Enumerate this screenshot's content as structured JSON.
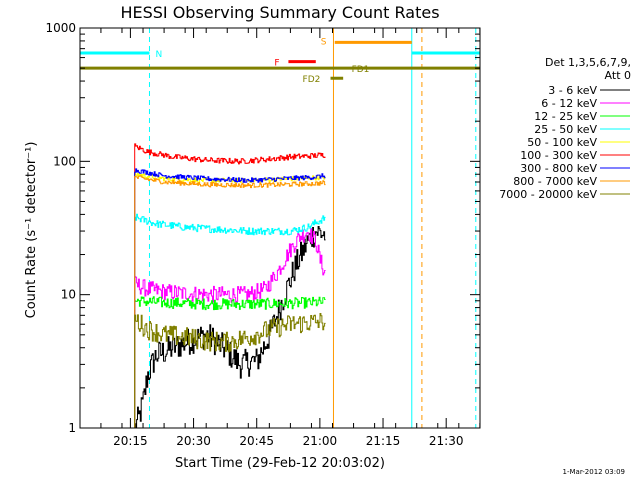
{
  "chart_data": {
    "type": "line",
    "title": "HESSI Observing Summary Count Rates",
    "xlabel": "Start Time (29-Feb-12 20:03:02)",
    "ylabel": "Count Rate (s⁻¹ detector⁻¹)",
    "yscale": "log",
    "ylim": [
      1,
      1000
    ],
    "xlim_minutes_from_start": [
      0,
      95
    ],
    "x_tick_labels": [
      "20:15",
      "20:30",
      "20:45",
      "21:00",
      "21:15",
      "21:30"
    ],
    "x_ticks_minutes_from_start": [
      11.97,
      26.97,
      41.97,
      56.97,
      71.97,
      86.97
    ],
    "y_tick_labels": [
      "1",
      "10",
      "100",
      "1000"
    ],
    "y_ticks": [
      1,
      10,
      100,
      1000
    ],
    "grid": false,
    "legend_title": [
      "Det 1,3,5,6,7,9,",
      "Att 0"
    ],
    "legend_placement": "right",
    "timestamp": "1-Mar-2012 03:09",
    "series": [
      {
        "name": "3 - 6 keV",
        "color": "#000000",
        "t_start": 13,
        "t_end": 58.3,
        "points": [
          [
            13,
            1.0
          ],
          [
            14,
            1.2
          ],
          [
            15,
            1.6
          ],
          [
            16,
            2.5
          ],
          [
            18,
            3.5
          ],
          [
            22,
            4.0
          ],
          [
            26,
            4.5
          ],
          [
            30,
            5.0
          ],
          [
            34,
            4.0
          ],
          [
            38,
            3.0
          ],
          [
            42,
            3.2
          ],
          [
            45,
            5.0
          ],
          [
            48,
            9.0
          ],
          [
            51,
            16
          ],
          [
            54,
            25
          ],
          [
            56,
            30
          ],
          [
            58.3,
            28
          ]
        ]
      },
      {
        "name": "6 - 12 keV",
        "color": "#ff00ff",
        "t_start": 13,
        "t_end": 58.3,
        "points": [
          [
            13,
            12
          ],
          [
            16,
            11
          ],
          [
            20,
            10.5
          ],
          [
            25,
            10.2
          ],
          [
            30,
            10.0
          ],
          [
            35,
            10.0
          ],
          [
            40,
            10.0
          ],
          [
            44,
            11
          ],
          [
            47,
            15
          ],
          [
            50,
            22
          ],
          [
            52,
            27
          ],
          [
            54,
            30
          ],
          [
            56,
            25
          ],
          [
            57,
            18
          ],
          [
            58.3,
            14
          ]
        ]
      },
      {
        "name": "12 - 25 keV",
        "color": "#00ff00",
        "t_start": 13,
        "t_end": 58.3,
        "points": [
          [
            13,
            9.0
          ],
          [
            20,
            8.7
          ],
          [
            30,
            8.5
          ],
          [
            40,
            8.5
          ],
          [
            50,
            8.6
          ],
          [
            58.3,
            8.8
          ]
        ]
      },
      {
        "name": "25 - 50 keV",
        "color": "#00ffff",
        "t_start": 13,
        "t_end": 58.3,
        "points": [
          [
            13,
            38
          ],
          [
            18,
            34
          ],
          [
            25,
            32
          ],
          [
            32,
            31
          ],
          [
            40,
            30
          ],
          [
            46,
            30
          ],
          [
            50,
            30
          ],
          [
            54,
            32
          ],
          [
            58.3,
            38
          ]
        ]
      },
      {
        "name": "50 - 100 keV",
        "color": "#ffff00",
        "t_start": 13,
        "t_end": 58.3,
        "points": [
          [
            13,
            80
          ],
          [
            20,
            74
          ],
          [
            30,
            72
          ],
          [
            40,
            72
          ],
          [
            50,
            74
          ],
          [
            58.3,
            76
          ]
        ]
      },
      {
        "name": "100 - 300 keV",
        "color": "#ff0000",
        "t_start": 13,
        "t_end": 58.3,
        "points": [
          [
            13,
            130
          ],
          [
            16,
            118
          ],
          [
            22,
            108
          ],
          [
            30,
            102
          ],
          [
            38,
            100
          ],
          [
            45,
            104
          ],
          [
            50,
            108
          ],
          [
            55,
            110
          ],
          [
            58.3,
            112
          ]
        ]
      },
      {
        "name": "300 - 800 keV",
        "color": "#0000ff",
        "t_start": 13,
        "t_end": 58.3,
        "points": [
          [
            13,
            86
          ],
          [
            20,
            78
          ],
          [
            30,
            74
          ],
          [
            40,
            72
          ],
          [
            48,
            74
          ],
          [
            55,
            76
          ],
          [
            58.3,
            78
          ]
        ]
      },
      {
        "name": "800 - 7000 keV",
        "color": "#ff9900",
        "t_start": 13,
        "t_end": 58.3,
        "points": [
          [
            13,
            76
          ],
          [
            20,
            70
          ],
          [
            30,
            67
          ],
          [
            40,
            66
          ],
          [
            48,
            67
          ],
          [
            55,
            68
          ],
          [
            58.3,
            69
          ]
        ]
      },
      {
        "name": "7000 - 20000 keV",
        "color": "#808000",
        "t_start": 13,
        "t_end": 58.3,
        "points": [
          [
            13,
            6.5
          ],
          [
            16,
            5.5
          ],
          [
            20,
            5.0
          ],
          [
            25,
            4.8
          ],
          [
            30,
            4.5
          ],
          [
            35,
            4.4
          ],
          [
            40,
            4.8
          ],
          [
            45,
            5.5
          ],
          [
            50,
            6.0
          ],
          [
            55,
            6.2
          ],
          [
            58.3,
            6.3
          ]
        ]
      }
    ],
    "annotations": [
      {
        "label": "N",
        "color": "#00ffff",
        "level": 650,
        "t_start": -1,
        "t_end": 16.5
      },
      {
        "label": "N",
        "color": "#00ffff",
        "level": 650,
        "t_start": 78.8,
        "t_end": 95
      },
      {
        "label": "S",
        "color": "#ff9900",
        "level": 780,
        "t_start": 60.5,
        "t_end": 78.8
      },
      {
        "label": "F",
        "color": "#ff0000",
        "level": 560,
        "t_start": 49.5,
        "t_end": 56.0
      },
      {
        "label": "FD1",
        "color": "#808000",
        "level": 500,
        "t_start": -1,
        "t_end": 95
      },
      {
        "label": "FD2",
        "color": "#808000",
        "level": 420,
        "t_start": 59.5,
        "t_end": 62.5
      }
    ],
    "vertical_markers": [
      {
        "t": 0,
        "color": "#00ffff",
        "style": "solid"
      },
      {
        "t": 16.5,
        "color": "#00ffff",
        "style": "dashed"
      },
      {
        "t": 60.2,
        "color": "#ff9900",
        "style": "solid"
      },
      {
        "t": 78.8,
        "color": "#00ffff",
        "style": "solid"
      },
      {
        "t": 81.2,
        "color": "#ff9900",
        "style": "dashed"
      },
      {
        "t": 94.0,
        "color": "#00ffff",
        "style": "dashed"
      }
    ]
  }
}
